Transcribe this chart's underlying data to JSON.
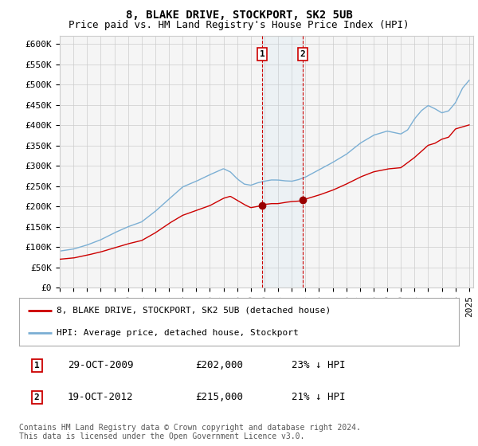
{
  "title": "8, BLAKE DRIVE, STOCKPORT, SK2 5UB",
  "subtitle": "Price paid vs. HM Land Registry's House Price Index (HPI)",
  "ylim": [
    0,
    620000
  ],
  "yticks": [
    0,
    50000,
    100000,
    150000,
    200000,
    250000,
    300000,
    350000,
    400000,
    450000,
    500000,
    550000,
    600000
  ],
  "ytick_labels": [
    "£0",
    "£50K",
    "£100K",
    "£150K",
    "£200K",
    "£250K",
    "£300K",
    "£350K",
    "£400K",
    "£450K",
    "£500K",
    "£550K",
    "£600K"
  ],
  "hpi_color": "#7bafd4",
  "price_color": "#cc0000",
  "marker1_date": 2009.83,
  "marker2_date": 2012.8,
  "marker1_price": 202000,
  "marker2_price": 215000,
  "transaction1": [
    "1",
    "29-OCT-2009",
    "£202,000",
    "23% ↓ HPI"
  ],
  "transaction2": [
    "2",
    "19-OCT-2012",
    "£215,000",
    "21% ↓ HPI"
  ],
  "legend1": "8, BLAKE DRIVE, STOCKPORT, SK2 5UB (detached house)",
  "legend2": "HPI: Average price, detached house, Stockport",
  "footnote": "Contains HM Land Registry data © Crown copyright and database right 2024.\nThis data is licensed under the Open Government Licence v3.0.",
  "background_color": "#ffffff",
  "plot_bg_color": "#f5f5f5",
  "grid_color": "#cccccc",
  "title_fontsize": 10,
  "subtitle_fontsize": 9,
  "tick_fontsize": 8
}
